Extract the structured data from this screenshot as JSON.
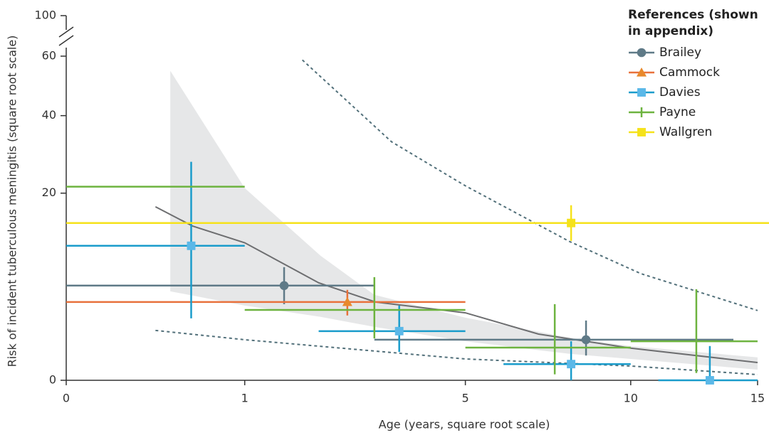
{
  "chart_data": {
    "type": "scatter",
    "x_label": "Age (years, square root scale)",
    "y_label": "Risk of incident tuberculous meningitis (square root scale)",
    "legend_title": "References (shown in appendix)",
    "x_scale": "sqrt",
    "y_scale": "sqrt",
    "xlim": [
      0,
      15.5
    ],
    "xticks": [
      0,
      1,
      5,
      10,
      15
    ],
    "ylim": [
      0,
      60
    ],
    "yticks": [
      0,
      20,
      40,
      60
    ],
    "y_break_tick": 100,
    "series": [
      {
        "name": "Brailey",
        "color": "#5f7a87",
        "marker_color": "#5f7a87",
        "marker": "circle",
        "x": [
          1.49,
          8.48
        ],
        "values": [
          5.12,
          0.94
        ],
        "x_low": [
          0,
          2.98
        ],
        "x_high": [
          2.98,
          13.97
        ],
        "y_low": [
          3.31,
          0.35
        ],
        "y_high": [
          7.31,
          2.04
        ]
      },
      {
        "name": "Cammock",
        "color": "#e8713c",
        "marker_color": "#e8892c",
        "marker": "triangle",
        "x": [
          2.48
        ],
        "values": [
          3.5
        ],
        "x_low": [
          0
        ],
        "x_high": [
          5
        ],
        "y_low": [
          2.4
        ],
        "y_high": [
          4.67
        ]
      },
      {
        "name": "Davies",
        "color": "#1a9ccb",
        "marker_color": "#5bb8e8",
        "marker": "square",
        "x": [
          0.49,
          3.48,
          8,
          13
        ],
        "values": [
          10.33,
          1.38,
          0.15,
          0
        ],
        "x_low": [
          0,
          2,
          6,
          11
        ],
        "x_high": [
          1,
          5,
          10,
          15
        ],
        "y_low": [
          2.19,
          0.46,
          0,
          0
        ],
        "y_high": [
          27.26,
          3.19,
          0.87,
          0.67
        ]
      },
      {
        "name": "Payne",
        "color": "#6db33f",
        "marker_color": "#6db33f",
        "marker": "plus",
        "x": [
          0.49,
          2.98,
          7.49,
          12.46
        ],
        "values": [
          21.4,
          2.83,
          0.61,
          0.87
        ],
        "x_low": [
          0,
          1,
          5,
          10
        ],
        "x_high": [
          1,
          5,
          10,
          15
        ],
        "y_low": [
          null,
          1.0,
          0.02,
          0.03
        ],
        "y_high": [
          null,
          6.08,
          3.31,
          4.74
        ]
      },
      {
        "name": "Wallgren",
        "color": "#f5e21b",
        "marker_color": "#f5e21b",
        "marker": "square",
        "x": [
          8
        ],
        "values": [
          14.13
        ],
        "x_low": [
          0
        ],
        "x_high": [
          15.5
        ],
        "y_low": [
          11.1
        ],
        "y_high": [
          17.5
        ]
      }
    ],
    "band": {
      "color": "#e6e7e8",
      "x": [
        0.34,
        1,
        2.03,
        2.98,
        5,
        7.95,
        10,
        15
      ],
      "high": [
        54.7,
        21.1,
        8.86,
        4.17,
        2.24,
        1.04,
        0.67,
        0.3
      ],
      "low": [
        4.52,
        3.19,
        2.3,
        1.63,
        0.87,
        0.4,
        0.26,
        0.065
      ]
    },
    "fit": {
      "color": "#6d6e70",
      "x": [
        0.25,
        0.5,
        1,
        2,
        3,
        5,
        7,
        10,
        15
      ],
      "values": [
        17.2,
        13.6,
        10.8,
        5.43,
        3.5,
        2.6,
        1.22,
        0.59,
        0.18
      ]
    },
    "dashed": [
      {
        "color": "#52707a",
        "x": [
          1.75,
          3.32,
          5,
          7.95,
          10.36,
          15
        ],
        "values": [
          58.6,
          32.5,
          21.6,
          11.0,
          6.5,
          2.78
        ]
      },
      {
        "color": "#52707a",
        "x": [
          0.25,
          1,
          5,
          10,
          15
        ],
        "values": [
          1.42,
          0.94,
          0.26,
          0.116,
          0.0185
        ]
      }
    ]
  }
}
